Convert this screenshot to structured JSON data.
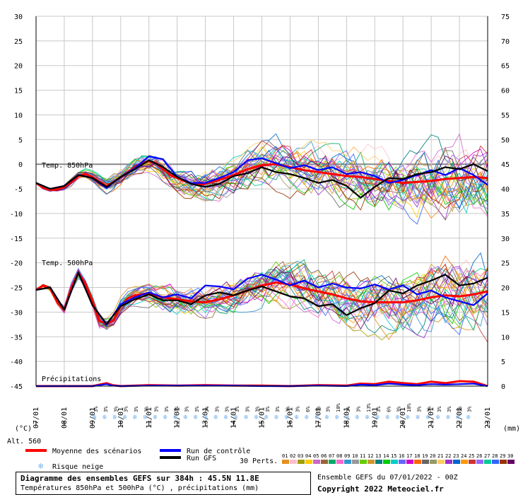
{
  "chart_data": {
    "type": "line",
    "x_dates": [
      "07/01",
      "08/01",
      "09/01",
      "10/01",
      "11/01",
      "12/01",
      "13/01",
      "14/01",
      "15/01",
      "16/01",
      "17/01",
      "18/01",
      "19/01",
      "20/01",
      "21/01",
      "22/01",
      "23/01"
    ],
    "y_left_ticks": [
      30,
      25,
      20,
      15,
      10,
      5,
      0,
      -5,
      -10,
      -15,
      -20,
      -25,
      -30,
      -35,
      -40,
      -45
    ],
    "y_right_ticks": [
      75,
      70,
      65,
      60,
      55,
      50,
      45,
      40,
      35,
      30,
      25,
      20,
      15,
      10,
      5,
      0
    ],
    "y_left_unit": "(°C)",
    "y_right_unit": "(mm)",
    "alt_label": "Alt. 560",
    "label_t850": "Temp. 850hPa",
    "label_t500": "Temp. 500hPa",
    "label_precip": "Précipitations",
    "legend": {
      "mean": "Moyenne des scénarios",
      "control": "Run de contrôle",
      "gfs": "Run GFS",
      "snow": "Risque neige",
      "perts": "30 Perts."
    },
    "colors": {
      "mean": "#ff0000",
      "control": "#0000ff",
      "gfs": "#000000",
      "snow": "#78b4f0"
    },
    "pert_numbers": [
      "01",
      "02",
      "03",
      "04",
      "05",
      "06",
      "07",
      "08",
      "09",
      "10",
      "11",
      "12",
      "13",
      "14",
      "15",
      "16",
      "17",
      "18",
      "19",
      "20",
      "21",
      "22",
      "23",
      "24",
      "25",
      "26",
      "27",
      "28",
      "29",
      "30"
    ],
    "pert_colors": [
      "#e69020",
      "#ffc0cb",
      "#a0a000",
      "#ffcc00",
      "#cc66cc",
      "#996633",
      "#00aa66",
      "#ff66cc",
      "#3399cc",
      "#999999",
      "#66cc00",
      "#cc9933",
      "#008080",
      "#00cc00",
      "#00cccc",
      "#6666ff",
      "#cc00cc",
      "#ff6600",
      "#666666",
      "#999966",
      "#ffcc66",
      "#9933cc",
      "#0066cc",
      "#ff9900",
      "#cc3333",
      "#9966ff",
      "#00cc99",
      "#3366ff",
      "#993300",
      "#660066"
    ],
    "snow_labels": [
      "3%",
      "3%",
      "3%",
      "3%",
      "3%",
      "3%",
      "3%",
      "3%",
      "3%",
      "3%",
      "3%",
      "3%",
      "3%",
      "3%",
      "3%",
      "3%",
      "3%",
      "3%",
      "3%",
      "3%",
      "3%",
      "6%",
      "3%",
      "3%",
      "10%",
      "3%",
      "3%",
      "13%",
      "3%",
      "6%",
      "3%",
      "10%",
      "3%",
      "3%",
      "3%",
      "3%",
      "3%",
      "3%"
    ],
    "series": [
      {
        "name": "Moyenne des scénarios",
        "level": "t850",
        "x": [
          0,
          0.25,
          0.5,
          0.75,
          1,
          1.25,
          1.5,
          1.75,
          2,
          2.25,
          2.5,
          2.75,
          3,
          3.25,
          3.5,
          3.75,
          4,
          4.25,
          4.5,
          4.75,
          5,
          5.25,
          5.5,
          5.75,
          6,
          6.5,
          7,
          7.5,
          8,
          8.5,
          9,
          9.5,
          10,
          10.5,
          11,
          11.5,
          12,
          12.5,
          13,
          13.5,
          14,
          14.5,
          15,
          15.5,
          16
        ],
        "y": [
          -3.8,
          -4.8,
          -5.2,
          -5.1,
          -4.6,
          -3.6,
          -2.4,
          -2.0,
          -2.6,
          -3.6,
          -4.4,
          -3.6,
          -2.6,
          -1.6,
          -0.6,
          0.2,
          0.6,
          0.2,
          -1.0,
          -2.2,
          -2.8,
          -3.4,
          -3.9,
          -4.1,
          -4.0,
          -3.2,
          -2.2,
          -1.0,
          -0.2,
          0.0,
          -0.6,
          -1.2,
          -1.6,
          -2.0,
          -2.4,
          -2.6,
          -3.0,
          -3.4,
          -3.8,
          -3.6,
          -3.4,
          -3.0,
          -2.8,
          -2.6,
          -2.8
        ]
      },
      {
        "name": "Run de contrôle",
        "level": "t850",
        "x": [
          0,
          0.5,
          1,
          1.5,
          2,
          2.5,
          3,
          3.5,
          4,
          4.5,
          5,
          5.5,
          6,
          6.5,
          7,
          7.5,
          8,
          8.5,
          9,
          9.5,
          10,
          10.5,
          11,
          11.5,
          12,
          12.5,
          13,
          13.5,
          14,
          14.5,
          15,
          15.5,
          16
        ],
        "y": [
          -3.8,
          -5.0,
          -4.4,
          -2.2,
          -2.8,
          -4.8,
          -2.6,
          -0.8,
          1.6,
          1.0,
          -2.6,
          -3.8,
          -3.8,
          -2.8,
          -1.6,
          0.8,
          1.2,
          0.2,
          -0.8,
          -0.2,
          -1.2,
          -0.6,
          -2.0,
          -1.6,
          -2.4,
          -3.8,
          -3.2,
          -2.2,
          -1.2,
          -2.2,
          -0.8,
          -2.2,
          -4.2
        ]
      },
      {
        "name": "Run GFS",
        "level": "t850",
        "x": [
          0,
          0.5,
          1,
          1.5,
          2,
          2.5,
          3,
          3.5,
          4,
          4.5,
          5,
          5.5,
          6,
          6.5,
          7,
          7.5,
          8,
          8.5,
          9,
          9.5,
          10,
          10.5,
          11,
          11.5,
          12,
          12.5,
          13,
          13.5,
          14,
          14.5,
          15,
          15.5,
          16
        ],
        "y": [
          -3.8,
          -5.0,
          -4.4,
          -2.2,
          -2.8,
          -4.6,
          -2.6,
          -1.0,
          0.8,
          -0.6,
          -2.6,
          -4.0,
          -4.6,
          -4.0,
          -2.4,
          -1.8,
          -0.6,
          -1.6,
          -2.0,
          -2.8,
          -3.8,
          -3.2,
          -4.4,
          -6.8,
          -4.6,
          -2.8,
          -3.0,
          -2.0,
          -1.6,
          -0.6,
          -1.0,
          0.0,
          -1.4
        ]
      },
      {
        "name": "Moyenne des scénarios",
        "level": "t500",
        "x": [
          0,
          0.25,
          0.5,
          0.75,
          1,
          1.25,
          1.5,
          1.75,
          2,
          2.25,
          2.5,
          2.75,
          3,
          3.25,
          3.5,
          3.75,
          4,
          4.25,
          4.5,
          4.75,
          5,
          5.5,
          6,
          6.5,
          7,
          7.5,
          8,
          8.5,
          9,
          9.5,
          10,
          10.5,
          11,
          11.5,
          12,
          12.5,
          13,
          13.5,
          14,
          14.5,
          15,
          15.5,
          16
        ],
        "y": [
          -25.5,
          -24.6,
          -25.2,
          -28.0,
          -29.5,
          -25.0,
          -22.0,
          -24.2,
          -27.8,
          -31.8,
          -32.4,
          -31.6,
          -28.8,
          -27.2,
          -26.6,
          -26.4,
          -26.2,
          -26.6,
          -27.0,
          -27.2,
          -27.4,
          -27.8,
          -28.0,
          -27.4,
          -26.6,
          -25.6,
          -24.6,
          -24.0,
          -24.4,
          -25.2,
          -25.8,
          -26.4,
          -27.2,
          -27.8,
          -28.0,
          -28.0,
          -28.0,
          -27.6,
          -27.0,
          -26.6,
          -26.8,
          -26.4,
          -25.8
        ]
      },
      {
        "name": "Run de contrôle",
        "level": "t500",
        "x": [
          0,
          0.5,
          1,
          1.5,
          2,
          2.5,
          3,
          3.5,
          4,
          4.5,
          5,
          5.5,
          6,
          6.5,
          7,
          7.5,
          8,
          8.5,
          9,
          9.5,
          10,
          10.5,
          11,
          11.5,
          12,
          12.5,
          13,
          13.5,
          14,
          14.5,
          15,
          15.5,
          16
        ],
        "y": [
          -25.5,
          -25.0,
          -29.5,
          -22.0,
          -28.6,
          -32.6,
          -28.4,
          -27.0,
          -26.0,
          -27.0,
          -26.4,
          -27.2,
          -24.6,
          -24.8,
          -25.4,
          -23.2,
          -22.4,
          -23.4,
          -24.6,
          -23.6,
          -25.0,
          -24.2,
          -25.0,
          -25.2,
          -24.4,
          -25.4,
          -24.6,
          -26.4,
          -25.6,
          -27.0,
          -27.8,
          -28.6,
          -26.2
        ]
      },
      {
        "name": "Run GFS",
        "level": "t500",
        "x": [
          0,
          0.5,
          1,
          1.5,
          2,
          2.5,
          3,
          3.5,
          4,
          4.5,
          5,
          5.5,
          6,
          6.5,
          7,
          7.5,
          8,
          8.5,
          9,
          9.5,
          10,
          10.5,
          11,
          11.5,
          12,
          12.5,
          13,
          13.5,
          14,
          14.5,
          15,
          15.5,
          16
        ],
        "y": [
          -25.5,
          -25.0,
          -29.5,
          -22.0,
          -28.6,
          -32.4,
          -28.8,
          -27.4,
          -26.4,
          -27.6,
          -27.6,
          -28.4,
          -26.6,
          -26.0,
          -26.6,
          -25.6,
          -24.8,
          -25.8,
          -26.8,
          -27.2,
          -28.8,
          -28.4,
          -30.6,
          -29.2,
          -28.2,
          -25.6,
          -26.2,
          -24.6,
          -23.6,
          -22.4,
          -24.6,
          -24.2,
          -23.0
        ]
      },
      {
        "name": "Moyenne des scénarios",
        "level": "precip_mm",
        "x": [
          0,
          1,
          2,
          2.5,
          2.7,
          3,
          4,
          5,
          6,
          7,
          8,
          9,
          10,
          11,
          11.5,
          12,
          12.5,
          13,
          13.5,
          14,
          14.5,
          15,
          15.5,
          16
        ],
        "y": [
          0,
          0,
          0,
          0.6,
          0.2,
          0,
          0.2,
          0.1,
          0.2,
          0.1,
          0.1,
          0,
          0.2,
          0.1,
          0.5,
          0.4,
          0.9,
          0.6,
          0.4,
          0.9,
          0.6,
          1.0,
          0.9,
          0
        ]
      },
      {
        "name": "Run de contrôle",
        "level": "precip_mm",
        "x": [
          0,
          1,
          2,
          2.5,
          2.7,
          3,
          4,
          5,
          6,
          7,
          8,
          9,
          10,
          11,
          11.5,
          12,
          12.5,
          13,
          13.5,
          14,
          14.5,
          15,
          15.5,
          16
        ],
        "y": [
          0,
          0,
          0,
          0.4,
          0.1,
          0,
          0.1,
          0.1,
          0.1,
          0.1,
          0,
          0,
          0.1,
          0,
          0.3,
          0.2,
          0.5,
          0.3,
          0.2,
          0.4,
          0.3,
          0.4,
          0.5,
          0
        ]
      }
    ]
  },
  "footer": {
    "title": "Diagramme des ensembles GEFS sur 384h : 45.5N 11.8E",
    "subtitle": "Températures 850hPa et 500hPa (°C) , précipitations (mm)",
    "run_info": "Ensemble GEFS du 07/01/2022 - 00Z",
    "copyright": "Copyright 2022 Meteociel.fr"
  }
}
